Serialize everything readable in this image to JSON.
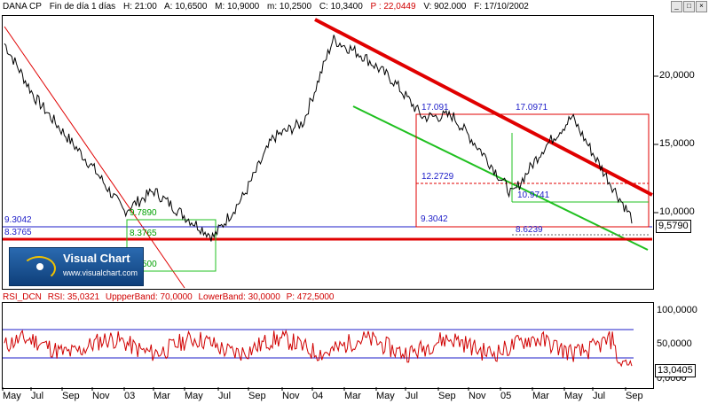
{
  "header": {
    "symbol": "DANA CP",
    "period": "Fin de día 1 días",
    "H": "H: 21:00",
    "A": "A: 10,6500",
    "M": "M: 10,9000",
    "m": "m: 10,2500",
    "C": "C: 10,3400",
    "P": "P : 22,0449",
    "V": "V: 902.000",
    "F": "F: 17/10/2002"
  },
  "window_buttons": [
    "_",
    "□",
    "×"
  ],
  "price_axis": [
    "20,0000",
    "15,0000",
    "10,0000"
  ],
  "last_price": "9,5790",
  "levels": {
    "left_top": "9.3042",
    "left_bottom": "8.3765",
    "fib_top": "17.0971",
    "fib_mid": "12.2729",
    "fib_right1": "10.9741",
    "fib_center": "9.3042",
    "fib_bottom": "8.6239",
    "mid_left1": "17.091",
    "green_1": "9.7890",
    "green_2": "8.3765",
    "green_3": "500"
  },
  "logo": {
    "title": "Visual Chart",
    "url": "www.visualchart.com"
  },
  "rsi": {
    "name": "RSI_DCN",
    "value": "RSI: 35,0321",
    "upper": "UppperBand: 70,0000",
    "lower": "LowerBand: 30,0000",
    "p": "P: 472,5000",
    "axis": [
      "100,0000",
      "50,0000",
      "0,0000"
    ],
    "last": "13,0405"
  },
  "x_axis": [
    "May",
    "Jul",
    "Sep",
    "Nov",
    "03",
    "Mar",
    "May",
    "Jul",
    "Sep",
    "Nov",
    "04",
    "Mar",
    "May",
    "Jul",
    "Sep",
    "Nov",
    "05",
    "Mar",
    "May",
    "Jul",
    "Sep"
  ],
  "chart_data": {
    "type": "line",
    "title": "DANA CP",
    "series": [
      {
        "name": "Price",
        "values": [
          22.4,
          18.5,
          15.8,
          13.2,
          10.1,
          11.6,
          9.8,
          8.2,
          11.2,
          15.5,
          16.6,
          22.7,
          21.5,
          19.7,
          17.0,
          17.1,
          14.4,
          11.3,
          14.6,
          17.0,
          13.2,
          9.58
        ]
      }
    ],
    "ylim": [
      5,
      24
    ],
    "colors": {
      "price": "#000000",
      "trend_red": "#e00000",
      "trend_green": "#20c020",
      "rsi": "#d00000",
      "band": "#2020c0"
    }
  }
}
